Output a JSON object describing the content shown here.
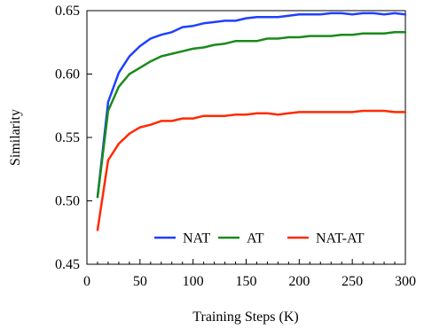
{
  "chart_data": {
    "type": "line",
    "xlabel": "Training Steps (K)",
    "ylabel": "Similarity",
    "xlim": [
      0,
      300
    ],
    "ylim": [
      0.45,
      0.65
    ],
    "x_ticks": [
      0,
      50,
      100,
      150,
      200,
      250,
      300
    ],
    "y_ticks": [
      0.45,
      0.5,
      0.55,
      0.6,
      0.65
    ],
    "x_tick_labels": [
      "0",
      "50",
      "100",
      "150",
      "200",
      "250",
      "300"
    ],
    "y_tick_labels": [
      "0.45",
      "0.50",
      "0.55",
      "0.60",
      "0.65"
    ],
    "x_minor_step": 10,
    "grid": false,
    "legend_position": "bottom-right",
    "x": [
      10,
      20,
      30,
      40,
      50,
      60,
      70,
      80,
      90,
      100,
      110,
      120,
      130,
      140,
      150,
      160,
      170,
      180,
      190,
      200,
      210,
      220,
      230,
      240,
      250,
      260,
      270,
      280,
      290,
      300
    ],
    "series": [
      {
        "name": "NAT",
        "color": "#1f3fff",
        "values": [
          0.503,
          0.578,
          0.601,
          0.614,
          0.622,
          0.628,
          0.631,
          0.633,
          0.637,
          0.638,
          0.64,
          0.641,
          0.642,
          0.642,
          0.644,
          0.645,
          0.645,
          0.645,
          0.646,
          0.647,
          0.647,
          0.647,
          0.648,
          0.648,
          0.647,
          0.648,
          0.648,
          0.647,
          0.648,
          0.647
        ]
      },
      {
        "name": "AT",
        "color": "#1a8a1a",
        "values": [
          0.503,
          0.571,
          0.59,
          0.6,
          0.605,
          0.61,
          0.614,
          0.616,
          0.618,
          0.62,
          0.621,
          0.623,
          0.624,
          0.626,
          0.626,
          0.626,
          0.628,
          0.628,
          0.629,
          0.629,
          0.63,
          0.63,
          0.63,
          0.631,
          0.631,
          0.632,
          0.632,
          0.632,
          0.633,
          0.633
        ]
      },
      {
        "name": "NAT-AT",
        "color": "#ff2a00",
        "values": [
          0.477,
          0.532,
          0.545,
          0.553,
          0.558,
          0.56,
          0.563,
          0.563,
          0.565,
          0.565,
          0.567,
          0.567,
          0.567,
          0.568,
          0.568,
          0.569,
          0.569,
          0.568,
          0.569,
          0.57,
          0.57,
          0.57,
          0.57,
          0.57,
          0.57,
          0.571,
          0.571,
          0.571,
          0.57,
          0.57
        ]
      }
    ]
  }
}
